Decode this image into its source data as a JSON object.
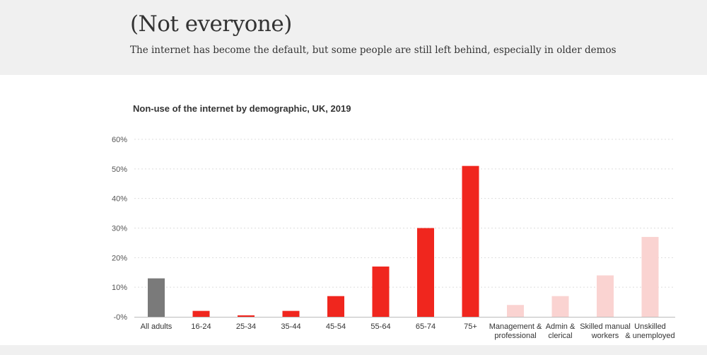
{
  "header": {
    "title": "(Not everyone)",
    "subtitle": "The internet has become the default, but some people are still left behind, especially in older demos"
  },
  "colors": {
    "overall": "#7a7a7a",
    "age": "#f0261e",
    "occupation": "#fad3d1",
    "grid": "#dddddd"
  },
  "chart_data": {
    "type": "bar",
    "title": "Non-use of the internet by demographic, UK, 2019",
    "xlabel": "",
    "ylabel": "",
    "ylim": [
      0,
      60
    ],
    "yticks": [
      {
        "value": 0,
        "label": "-0%"
      },
      {
        "value": 10,
        "label": "10%"
      },
      {
        "value": 20,
        "label": "20%"
      },
      {
        "value": 30,
        "label": "30%"
      },
      {
        "value": 40,
        "label": "40%"
      },
      {
        "value": 50,
        "label": "50%"
      },
      {
        "value": 60,
        "label": "60%"
      }
    ],
    "grid": true,
    "categories": [
      {
        "lines": [
          "All adults"
        ],
        "group": "overall"
      },
      {
        "lines": [
          "16-24"
        ],
        "group": "age"
      },
      {
        "lines": [
          "25-34"
        ],
        "group": "age"
      },
      {
        "lines": [
          "35-44"
        ],
        "group": "age"
      },
      {
        "lines": [
          "45-54"
        ],
        "group": "age"
      },
      {
        "lines": [
          "55-64"
        ],
        "group": "age"
      },
      {
        "lines": [
          "65-74"
        ],
        "group": "age"
      },
      {
        "lines": [
          "75+"
        ],
        "group": "age"
      },
      {
        "lines": [
          "Management &",
          "professional"
        ],
        "group": "occupation"
      },
      {
        "lines": [
          "Admin &",
          "clerical"
        ],
        "group": "occupation"
      },
      {
        "lines": [
          "Skilled manual",
          "workers"
        ],
        "group": "occupation"
      },
      {
        "lines": [
          "Unskilled",
          "& unemployed"
        ],
        "group": "occupation"
      }
    ],
    "values": [
      13,
      2,
      0.5,
      2,
      7,
      17,
      30,
      51,
      4,
      7,
      14,
      27
    ]
  }
}
